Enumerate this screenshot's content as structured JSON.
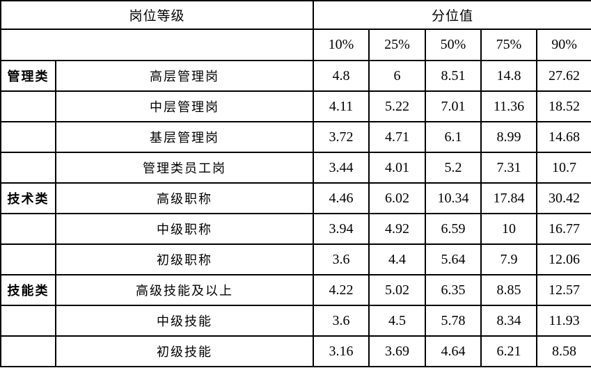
{
  "table": {
    "header_left": "岗位等级",
    "header_right": "分位值",
    "columns": [
      "10%",
      "25%",
      "50%",
      "75%",
      "90%"
    ],
    "groups": [
      {
        "category": "管理类",
        "rows": [
          {
            "label": "高层管理岗",
            "values": [
              "4.8",
              "6",
              "8.51",
              "14.8",
              "27.62"
            ]
          },
          {
            "label": "中层管理岗",
            "values": [
              "4.11",
              "5.22",
              "7.01",
              "11.36",
              "18.52"
            ]
          },
          {
            "label": "基层管理岗",
            "values": [
              "3.72",
              "4.71",
              "6.1",
              "8.99",
              "14.68"
            ]
          },
          {
            "label": "管理类员工岗",
            "values": [
              "3.44",
              "4.01",
              "5.2",
              "7.31",
              "10.7"
            ]
          }
        ]
      },
      {
        "category": "技术类",
        "rows": [
          {
            "label": "高级职称",
            "values": [
              "4.46",
              "6.02",
              "10.34",
              "17.84",
              "30.42"
            ]
          },
          {
            "label": "中级职称",
            "values": [
              "3.94",
              "4.92",
              "6.59",
              "10",
              "16.77"
            ]
          },
          {
            "label": "初级职称",
            "values": [
              "3.6",
              "4.4",
              "5.64",
              "7.9",
              "12.06"
            ]
          }
        ]
      },
      {
        "category": "技能类",
        "rows": [
          {
            "label": "高级技能及以上",
            "values": [
              "4.22",
              "5.02",
              "6.35",
              "8.85",
              "12.57"
            ]
          },
          {
            "label": "中级技能",
            "values": [
              "3.6",
              "4.5",
              "5.78",
              "8.34",
              "11.93"
            ]
          },
          {
            "label": "初级技能",
            "values": [
              "3.16",
              "3.69",
              "4.64",
              "6.21",
              "8.58"
            ]
          }
        ]
      }
    ]
  },
  "colors": {
    "border": "#000000",
    "gridline": "#c9c9c9",
    "background": "#ffffff",
    "text": "#000000"
  }
}
